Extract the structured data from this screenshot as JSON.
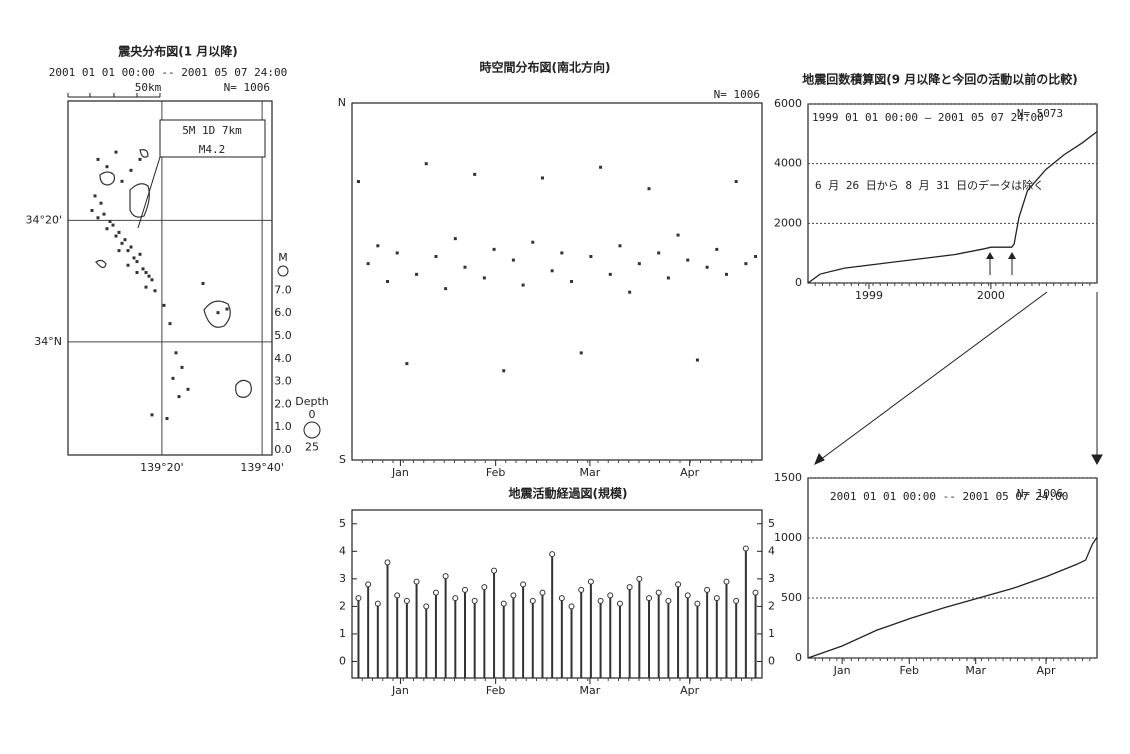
{
  "chart_data": [
    {
      "type": "scatter",
      "title": "震央分布図(1 月以降)",
      "subtitle": "2001 01 01 00:00 -- 2001 05 07 24:00",
      "annotations": [
        "50km",
        "N= 1006"
      ],
      "inset": [
        "5M 1D  7km",
        "M4.2"
      ],
      "xlim": [
        139.02,
        139.7
      ],
      "ylim": [
        33.69,
        34.66
      ],
      "xticks": [
        {
          "value": 139.333,
          "label": "139°20'"
        },
        {
          "value": 139.667,
          "label": "139°40'"
        }
      ],
      "yticks": [
        {
          "value": 34.333,
          "label": "34°20'"
        },
        {
          "value": 34,
          "label": "34°N"
        }
      ],
      "grid": true,
      "color": "#333",
      "x": [
        139.1,
        139.12,
        139.14,
        139.15,
        139.17,
        139.18,
        139.19,
        139.2,
        139.21,
        139.22,
        139.23,
        139.24,
        139.25,
        139.26,
        139.27,
        139.28,
        139.29,
        139.3,
        139.13,
        139.16,
        139.19,
        139.22,
        139.25,
        139.28,
        139.11,
        139.2,
        139.23,
        139.26,
        139.31,
        139.34,
        139.36,
        139.38,
        139.4,
        139.37,
        139.39,
        139.42,
        139.47,
        139.52,
        139.55,
        139.43,
        139.3,
        139.35,
        139.18,
        139.12,
        139.15
      ],
      "y": [
        34.36,
        34.34,
        34.35,
        34.31,
        34.32,
        34.29,
        34.3,
        34.27,
        34.28,
        34.25,
        34.26,
        34.23,
        34.22,
        34.24,
        34.2,
        34.19,
        34.18,
        34.17,
        34.38,
        34.33,
        34.25,
        34.21,
        34.19,
        34.15,
        34.4,
        34.44,
        34.47,
        34.5,
        34.14,
        34.1,
        34.05,
        33.97,
        33.93,
        33.9,
        33.85,
        33.87,
        34.16,
        34.08,
        34.09,
        34.53,
        33.8,
        33.79,
        34.52,
        34.5,
        34.48
      ],
      "size_legend": {
        "title": "M",
        "ticks": [
          {
            "value": 7,
            "label": "7.0"
          },
          {
            "value": 6,
            "label": "6.0"
          },
          {
            "value": 5,
            "label": "5.0"
          },
          {
            "value": 4,
            "label": "4.0"
          },
          {
            "value": 3,
            "label": "3.0"
          },
          {
            "value": 2,
            "label": "2.0"
          },
          {
            "value": 1,
            "label": "1.0"
          },
          {
            "value": 0,
            "label": "0.0"
          }
        ]
      },
      "depth_legend": {
        "title": "Depth",
        "ticks": [
          0,
          25
        ]
      }
    },
    {
      "type": "scatter",
      "title": "時空間分布図(南北方向)",
      "annotations": [
        "N= 1006"
      ],
      "color": "#333",
      "xlim": [
        0,
        127
      ],
      "xticks": [
        {
          "value": 15,
          "label": "Jan"
        },
        {
          "value": 44.5,
          "label": "Feb"
        },
        {
          "value": 73.7,
          "label": "Mar"
        },
        {
          "value": 104.6,
          "label": "Apr"
        }
      ],
      "ylim": [
        0,
        1
      ],
      "yticks": [
        {
          "value": 1,
          "label": "N"
        },
        {
          "value": 0,
          "label": "S"
        }
      ],
      "x": [
        2,
        5,
        8,
        11,
        14,
        17,
        20,
        23,
        26,
        29,
        32,
        35,
        38,
        41,
        44,
        47,
        50,
        53,
        56,
        59,
        62,
        65,
        68,
        71,
        74,
        77,
        80,
        83,
        86,
        89,
        92,
        95,
        98,
        101,
        104,
        107,
        110,
        113,
        116,
        119,
        122,
        125
      ],
      "y": [
        0.78,
        0.55,
        0.6,
        0.5,
        0.58,
        0.27,
        0.52,
        0.83,
        0.57,
        0.48,
        0.62,
        0.54,
        0.8,
        0.51,
        0.59,
        0.25,
        0.56,
        0.49,
        0.61,
        0.79,
        0.53,
        0.58,
        0.5,
        0.3,
        0.57,
        0.82,
        0.52,
        0.6,
        0.47,
        0.55,
        0.76,
        0.58,
        0.51,
        0.63,
        0.56,
        0.28,
        0.54,
        0.59,
        0.52,
        0.78,
        0.55,
        0.57
      ]
    },
    {
      "type": "stem",
      "title": "地震活動経過図(規模)",
      "color": "#333",
      "xlim": [
        0,
        127
      ],
      "xticks": [
        {
          "value": 15,
          "label": "Jan"
        },
        {
          "value": 44.5,
          "label": "Feb"
        },
        {
          "value": 73.7,
          "label": "Mar"
        },
        {
          "value": 104.6,
          "label": "Apr"
        }
      ],
      "ylim": [
        -0.6,
        5.5
      ],
      "yticks": [
        0,
        1,
        2,
        3,
        4,
        5
      ],
      "y2lim": [
        -0.6,
        5.5
      ],
      "y2ticks": [
        0,
        1,
        2,
        3,
        4,
        5
      ],
      "x": [
        2,
        5,
        8,
        11,
        14,
        17,
        20,
        23,
        26,
        29,
        32,
        35,
        38,
        41,
        44,
        47,
        50,
        53,
        56,
        59,
        62,
        65,
        68,
        71,
        74,
        77,
        80,
        83,
        86,
        89,
        92,
        95,
        98,
        101,
        104,
        107,
        110,
        113,
        116,
        119,
        122,
        125
      ],
      "values": [
        2.3,
        2.8,
        2.1,
        3.6,
        2.4,
        2.2,
        2.9,
        2.0,
        2.5,
        3.1,
        2.3,
        2.6,
        2.2,
        2.7,
        3.3,
        2.1,
        2.4,
        2.8,
        2.2,
        2.5,
        3.9,
        2.3,
        2.0,
        2.6,
        2.9,
        2.2,
        2.4,
        2.1,
        2.7,
        3.0,
        2.3,
        2.5,
        2.2,
        2.8,
        2.4,
        2.1,
        2.6,
        2.3,
        2.9,
        2.2,
        4.1,
        2.5
      ]
    },
    {
      "type": "line",
      "title": "地震回数積算図(9 月以降と今回の活動以前の比較)",
      "subtitle": "1999 01 01 00:00 — 2001 05 07 24:00",
      "annotations": [
        "N= 5073",
        "6 月 26 日から 8 月 31 日のデータは除く"
      ],
      "color": "#222",
      "grid": true,
      "xlim": [
        1999.0,
        2001.37
      ],
      "xticks": [
        {
          "value": 1999.5,
          "label": "1999"
        },
        {
          "value": 2000.5,
          "label": "2000"
        }
      ],
      "ylim": [
        0,
        6000
      ],
      "yticks": [
        0,
        2000,
        4000,
        6000
      ],
      "x": [
        1999.0,
        1999.1,
        1999.3,
        1999.6,
        1999.9,
        2000.2,
        2000.45,
        2000.5,
        2000.67,
        2000.69,
        2000.73,
        2000.8,
        2000.95,
        2001.1,
        2001.25,
        2001.37
      ],
      "values": [
        0,
        300,
        500,
        650,
        800,
        950,
        1150,
        1200,
        1200,
        1300,
        2200,
        3100,
        3800,
        4300,
        4700,
        5073
      ]
    },
    {
      "type": "line",
      "subtitle": "2001 01 01 00:00 -- 2001 05 07 24:00",
      "annotations": [
        "N= 1006"
      ],
      "color": "#222",
      "grid": true,
      "xlim": [
        0,
        127
      ],
      "xticks": [
        {
          "value": 15,
          "label": "Jan"
        },
        {
          "value": 44.5,
          "label": "Feb"
        },
        {
          "value": 73.7,
          "label": "Mar"
        },
        {
          "value": 104.6,
          "label": "Apr"
        }
      ],
      "ylim": [
        0,
        1500
      ],
      "yticks": [
        0,
        500,
        1000,
        1500
      ],
      "x": [
        0,
        15,
        30,
        45,
        60,
        75,
        90,
        105,
        118,
        122,
        125,
        127
      ],
      "values": [
        0,
        100,
        230,
        330,
        420,
        500,
        580,
        680,
        780,
        816,
        950,
        1006
      ]
    }
  ]
}
